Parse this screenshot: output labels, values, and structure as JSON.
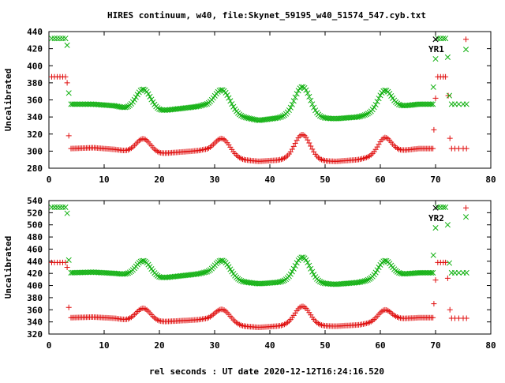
{
  "chart_data": {
    "type": "scatter",
    "title": "HIRES continuum, w40, file:Skynet_59195_w40_51574_547.cyb.txt",
    "xlabel": "rel seconds : UT date 2020-12-12T16:24:16.520",
    "xlim": [
      0,
      80
    ],
    "xticks": [
      "0",
      "10",
      "20",
      "30",
      "40",
      "50",
      "60",
      "70",
      "80"
    ],
    "grid": false,
    "colors": {
      "red": "#e01010",
      "green": "#10b010",
      "black": "#000000"
    },
    "panels": [
      {
        "ylabel": "Uncalibrated",
        "ylim": [
          280,
          440
        ],
        "yticks": [
          "280",
          "300",
          "320",
          "340",
          "360",
          "380",
          "400",
          "420",
          "440"
        ],
        "legend": {
          "placement": "top-right",
          "label": "YR1"
        },
        "series": [
          {
            "color": "red",
            "points": [
              [
                0.5,
                387
              ],
              [
                1.0,
                387
              ],
              [
                1.5,
                387
              ],
              [
                2.0,
                387
              ],
              [
                2.5,
                387
              ],
              [
                3.0,
                387
              ],
              [
                3.3,
                380
              ],
              [
                3.6,
                318
              ],
              [
                69.7,
                325
              ],
              [
                70.0,
                362
              ],
              [
                70.4,
                387
              ],
              [
                70.9,
                387
              ],
              [
                71.4,
                387
              ],
              [
                71.8,
                387
              ],
              [
                72.3,
                365
              ],
              [
                72.6,
                315
              ],
              [
                72.9,
                303
              ],
              [
                73.5,
                303
              ],
              [
                74.2,
                303
              ],
              [
                75.0,
                303
              ],
              [
                75.6,
                303
              ]
            ],
            "profile": {
              "start": 4.0,
              "end": 69.6,
              "step": 0.28,
              "base": 303,
              "drift": [
                [
                  4,
                  303
                ],
                [
                  8,
                  304
                ],
                [
                  12,
                  302
                ],
                [
                  14,
                  300
                ],
                [
                  20,
                  297
                ],
                [
                  28,
                  301
                ],
                [
                  35,
                  290
                ],
                [
                  38,
                  288
                ],
                [
                  43,
                  290
                ],
                [
                  52,
                  288
                ],
                [
                  56,
                  290
                ],
                [
                  63,
                  300
                ],
                [
                  67,
                  303
                ],
                [
                  69.6,
                  303
                ]
              ],
              "bumps": [
                [
                  17.1,
                  16,
                  1.3
                ],
                [
                  31.4,
                  19,
                  1.4
                ],
                [
                  45.9,
                  30,
                  1.4
                ],
                [
                  60.8,
                  19,
                  1.2
                ]
              ]
            }
          },
          {
            "color": "green",
            "points": [
              [
                0.5,
                432
              ],
              [
                1.0,
                432
              ],
              [
                1.5,
                432
              ],
              [
                2.0,
                432
              ],
              [
                2.5,
                432
              ],
              [
                3.0,
                432
              ],
              [
                3.3,
                424
              ],
              [
                3.6,
                368
              ],
              [
                69.6,
                375
              ],
              [
                70.0,
                408
              ],
              [
                70.4,
                432
              ],
              [
                70.9,
                432
              ],
              [
                71.4,
                432
              ],
              [
                71.8,
                432
              ],
              [
                72.2,
                410
              ],
              [
                72.5,
                365
              ],
              [
                72.9,
                355
              ],
              [
                73.5,
                355
              ],
              [
                74.2,
                355
              ],
              [
                75.0,
                355
              ],
              [
                75.6,
                355
              ]
            ],
            "profile": {
              "start": 4.0,
              "end": 69.6,
              "step": 0.28,
              "base": 355,
              "drift": [
                [
                  4,
                  355
                ],
                [
                  8,
                  355
                ],
                [
                  12,
                  353
                ],
                [
                  14,
                  350
                ],
                [
                  20,
                  347
                ],
                [
                  28,
                  353
                ],
                [
                  35,
                  340
                ],
                [
                  38,
                  336
                ],
                [
                  43,
                  340
                ],
                [
                  52,
                  338
                ],
                [
                  56,
                  340
                ],
                [
                  63,
                  352
                ],
                [
                  67,
                  355
                ],
                [
                  69.6,
                  355
                ]
              ],
              "bumps": [
                [
                  17.1,
                  24,
                  1.3
                ],
                [
                  31.4,
                  25,
                  1.4
                ],
                [
                  45.9,
                  36,
                  1.4
                ],
                [
                  60.8,
                  23,
                  1.2
                ]
              ]
            }
          }
        ],
        "legend_marks": [
          {
            "color": "black",
            "point": [
              70.0,
              431
            ]
          },
          {
            "color": "red",
            "point": [
              75.5,
              431
            ]
          },
          {
            "color": "green",
            "point": [
              75.5,
              419
            ]
          }
        ]
      },
      {
        "ylabel": "Uncalibrated",
        "ylim": [
          320,
          540
        ],
        "yticks": [
          "320",
          "340",
          "360",
          "380",
          "400",
          "420",
          "440",
          "460",
          "480",
          "500",
          "520",
          "540"
        ],
        "legend": {
          "placement": "top-right",
          "label": "YR2"
        },
        "series": [
          {
            "color": "red",
            "points": [
              [
                0.5,
                438
              ],
              [
                1.0,
                438
              ],
              [
                1.5,
                438
              ],
              [
                2.0,
                438
              ],
              [
                2.5,
                438
              ],
              [
                3.0,
                438
              ],
              [
                3.3,
                430
              ],
              [
                3.6,
                364
              ],
              [
                69.7,
                370
              ],
              [
                70.0,
                409
              ],
              [
                70.4,
                438
              ],
              [
                70.9,
                438
              ],
              [
                71.4,
                438
              ],
              [
                71.8,
                438
              ],
              [
                72.2,
                412
              ],
              [
                72.6,
                360
              ],
              [
                72.9,
                346
              ],
              [
                73.5,
                346
              ],
              [
                74.2,
                346
              ],
              [
                75.0,
                346
              ],
              [
                75.6,
                346
              ]
            ],
            "profile": {
              "start": 4.0,
              "end": 69.6,
              "step": 0.28,
              "base": 347,
              "drift": [
                [
                  4,
                  347
                ],
                [
                  8,
                  348
                ],
                [
                  12,
                  346
                ],
                [
                  14,
                  343
                ],
                [
                  20,
                  340
                ],
                [
                  28,
                  344
                ],
                [
                  35,
                  333
                ],
                [
                  38,
                  331
                ],
                [
                  43,
                  334
                ],
                [
                  52,
                  333
                ],
                [
                  56,
                  335
                ],
                [
                  63,
                  345
                ],
                [
                  67,
                  347
                ],
                [
                  69.6,
                  347
                ]
              ],
              "bumps": [
                [
                  17.1,
                  21,
                  1.3
                ],
                [
                  31.4,
                  22,
                  1.4
                ],
                [
                  45.9,
                  32,
                  1.4
                ],
                [
                  60.8,
                  18,
                  1.2
                ]
              ]
            }
          },
          {
            "color": "green",
            "points": [
              [
                0.5,
                529
              ],
              [
                1.0,
                529
              ],
              [
                1.5,
                529
              ],
              [
                2.0,
                529
              ],
              [
                2.5,
                529
              ],
              [
                3.0,
                529
              ],
              [
                3.3,
                519
              ],
              [
                3.6,
                442
              ],
              [
                69.6,
                450
              ],
              [
                70.0,
                495
              ],
              [
                70.4,
                529
              ],
              [
                70.9,
                529
              ],
              [
                71.4,
                529
              ],
              [
                71.8,
                529
              ],
              [
                72.2,
                500
              ],
              [
                72.5,
                437
              ],
              [
                72.9,
                421
              ],
              [
                73.5,
                421
              ],
              [
                74.2,
                421
              ],
              [
                75.0,
                421
              ],
              [
                75.6,
                421
              ]
            ],
            "profile": {
              "start": 4.0,
              "end": 69.6,
              "step": 0.28,
              "base": 421,
              "drift": [
                [
                  4,
                  421
                ],
                [
                  8,
                  422
                ],
                [
                  12,
                  420
                ],
                [
                  14,
                  418
                ],
                [
                  20,
                  412
                ],
                [
                  28,
                  420
                ],
                [
                  35,
                  406
                ],
                [
                  38,
                  403
                ],
                [
                  43,
                  406
                ],
                [
                  52,
                  402
                ],
                [
                  56,
                  405
                ],
                [
                  63,
                  418
                ],
                [
                  67,
                  421
                ],
                [
                  69.6,
                  421
                ]
              ],
              "bumps": [
                [
                  17.1,
                  26,
                  1.3
                ],
                [
                  31.4,
                  28,
                  1.4
                ],
                [
                  45.9,
                  42,
                  1.4
                ],
                [
                  60.8,
                  27,
                  1.2
                ]
              ]
            }
          }
        ],
        "legend_marks": [
          {
            "color": "black",
            "point": [
              70.0,
              528
            ]
          },
          {
            "color": "red",
            "point": [
              75.5,
              528
            ]
          },
          {
            "color": "green",
            "point": [
              75.5,
              513
            ]
          }
        ]
      }
    ]
  }
}
